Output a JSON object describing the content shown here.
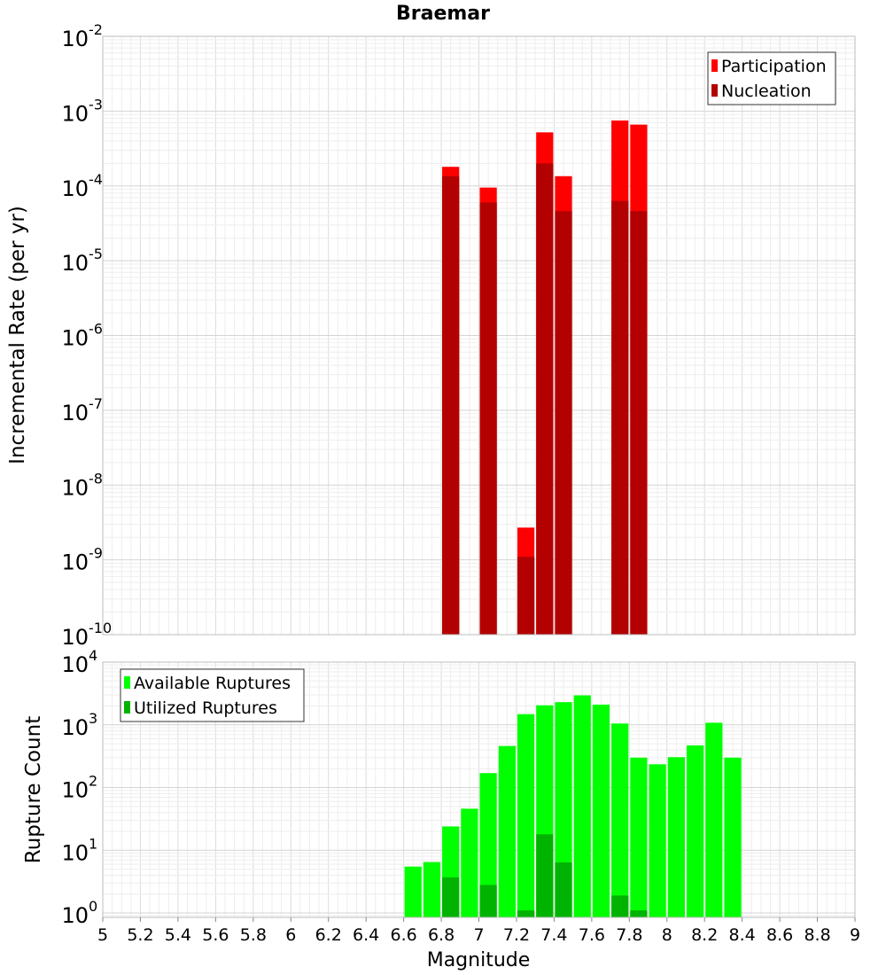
{
  "chart_data": [
    {
      "type": "bar",
      "title": "Braemar",
      "ylabel": "Incremental Rate (per yr)",
      "y_scale": "log",
      "ylim_exponents": [
        -10,
        -2
      ],
      "y_tick_base": "10",
      "y_tick_exponents": [
        "-10",
        "-9",
        "-8",
        "-7",
        "-6",
        "-5",
        "-4",
        "-3",
        "-2"
      ],
      "xlim": [
        5,
        9
      ],
      "bar_width": 0.1,
      "legend_position": "top-right",
      "grid": true,
      "series": [
        {
          "name": "Participation",
          "color": "#ff0000",
          "x": [
            6.85,
            7.05,
            7.25,
            7.35,
            7.45,
            7.75,
            7.85
          ],
          "values": [
            0.00018,
            9.5e-05,
            2.7e-09,
            0.00052,
            0.000135,
            0.00075,
            0.00066
          ]
        },
        {
          "name": "Nucleation",
          "color": "#b30000",
          "x": [
            6.85,
            7.05,
            7.25,
            7.35,
            7.45,
            7.75,
            7.85
          ],
          "values": [
            0.000135,
            6e-05,
            1.1e-09,
            0.0002,
            4.6e-05,
            6.3e-05,
            4.6e-05
          ]
        }
      ]
    },
    {
      "type": "bar",
      "ylabel": "Rupture Count",
      "xlabel": "Magnitude",
      "y_scale": "log",
      "ylim_exponents": [
        -0.07,
        4
      ],
      "y_tick_base": "10",
      "y_tick_exponents": [
        "0",
        "1",
        "2",
        "3",
        "4"
      ],
      "xlim": [
        5,
        9
      ],
      "x_ticks": [
        "5",
        "5.2",
        "5.4",
        "5.6",
        "5.8",
        "6",
        "6.2",
        "6.4",
        "6.6",
        "6.8",
        "7",
        "7.2",
        "7.4",
        "7.6",
        "7.8",
        "8",
        "8.2",
        "8.4",
        "8.6",
        "8.8",
        "9"
      ],
      "bar_width": 0.1,
      "legend_position": "top-left",
      "grid": true,
      "series": [
        {
          "name": "Available Ruptures",
          "color": "#00ff00",
          "x": [
            6.65,
            6.75,
            6.85,
            6.95,
            7.05,
            7.15,
            7.25,
            7.35,
            7.45,
            7.55,
            7.65,
            7.75,
            7.85,
            7.95,
            8.05,
            8.15,
            8.25,
            8.35
          ],
          "values": [
            5.5,
            6.5,
            24,
            46,
            170,
            460,
            1480,
            2050,
            2300,
            2950,
            2100,
            1050,
            300,
            235,
            305,
            470,
            1080,
            300
          ]
        },
        {
          "name": "Utilized Ruptures",
          "color": "#00b300",
          "x": [
            6.85,
            7.05,
            7.25,
            7.35,
            7.45,
            7.75,
            7.85
          ],
          "values": [
            3.7,
            2.8,
            1.1,
            18,
            6.4,
            1.9,
            1.1
          ]
        }
      ]
    }
  ]
}
